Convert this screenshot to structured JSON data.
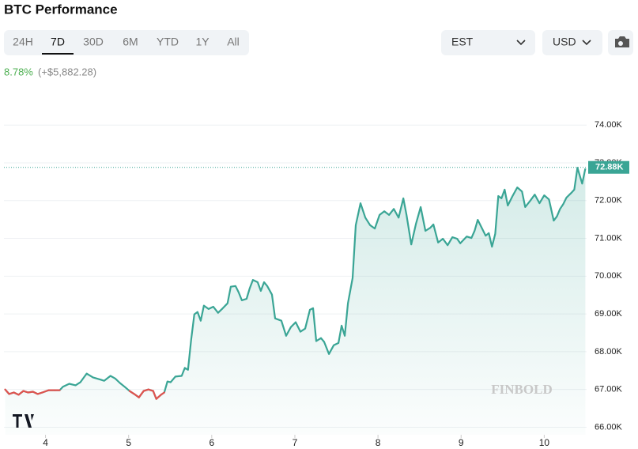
{
  "header": {
    "title": "BTC Performance",
    "tabs": [
      "24H",
      "7D",
      "30D",
      "6M",
      "YTD",
      "1Y",
      "All"
    ],
    "active_tab": "7D",
    "timezone": "EST",
    "currency": "USD",
    "change_percent": "8.78%",
    "change_amount": "(+$5,882.28)",
    "watermark": "FINBOLD"
  },
  "chart_data": {
    "type": "line",
    "color": "#3aa595",
    "down_color": "#e0534f",
    "grid": true,
    "x": [
      3.514,
      3.562,
      3.619,
      3.676,
      3.733,
      3.79,
      3.848,
      3.905,
      3.962,
      4.038,
      4.114,
      4.171,
      4.21,
      4.286,
      4.362,
      4.419,
      4.495,
      4.571,
      4.648,
      4.705,
      4.781,
      4.838,
      4.895,
      4.952,
      5.01,
      5.067,
      5.124,
      5.181,
      5.238,
      5.295,
      5.333,
      5.39,
      5.429,
      5.467,
      5.505,
      5.562,
      5.638,
      5.676,
      5.714,
      5.752,
      5.79,
      5.829,
      5.867,
      5.905,
      5.962,
      6.019,
      6.076,
      6.133,
      6.19,
      6.229,
      6.286,
      6.324,
      6.362,
      6.419,
      6.457,
      6.495,
      6.552,
      6.59,
      6.629,
      6.667,
      6.724,
      6.762,
      6.838,
      6.895,
      6.952,
      7.01,
      7.067,
      7.124,
      7.181,
      7.219,
      7.257,
      7.314,
      7.352,
      7.41,
      7.467,
      7.524,
      7.562,
      7.6,
      7.638,
      7.695,
      7.733,
      7.79,
      7.848,
      7.905,
      7.962,
      8.019,
      8.076,
      8.133,
      8.19,
      8.248,
      8.305,
      8.343,
      8.4,
      8.457,
      8.514,
      8.571,
      8.629,
      8.667,
      8.724,
      8.781,
      8.838,
      8.895,
      8.952,
      8.99,
      9.067,
      9.124,
      9.162,
      9.2,
      9.257,
      9.295,
      9.333,
      9.371,
      9.41,
      9.448,
      9.486,
      9.524,
      9.562,
      9.619,
      9.676,
      9.733,
      9.771,
      9.829,
      9.886,
      9.943,
      10.0,
      10.057,
      10.114,
      10.152,
      10.19,
      10.229,
      10.267,
      10.324,
      10.362,
      10.4,
      10.457,
      10.495
    ],
    "values": [
      67000,
      66880,
      66920,
      66860,
      66960,
      66920,
      66940,
      66880,
      66920,
      66980,
      66980,
      66980,
      67070,
      67150,
      67110,
      67190,
      67420,
      67320,
      67270,
      67230,
      67360,
      67290,
      67170,
      67070,
      66960,
      66880,
      66790,
      66960,
      67000,
      66960,
      66750,
      66860,
      66920,
      67210,
      67190,
      67340,
      67360,
      67570,
      67520,
      68320,
      68990,
      69050,
      68820,
      69220,
      69130,
      69190,
      69030,
      69150,
      69280,
      69720,
      69740,
      69570,
      69360,
      69400,
      69680,
      69900,
      69840,
      69610,
      69840,
      69740,
      69510,
      68880,
      68820,
      68420,
      68650,
      68780,
      68530,
      68610,
      69110,
      69150,
      68280,
      68360,
      68260,
      67940,
      68170,
      68230,
      68690,
      68420,
      69280,
      69950,
      71350,
      71930,
      71550,
      71350,
      71260,
      71620,
      71720,
      71620,
      71780,
      71550,
      72060,
      71620,
      70840,
      71390,
      71830,
      71200,
      71280,
      71370,
      70890,
      70990,
      70820,
      71030,
      70990,
      70870,
      71050,
      71010,
      71200,
      71490,
      71240,
      71070,
      71140,
      70780,
      71120,
      72120,
      72060,
      72290,
      71870,
      72120,
      72350,
      72240,
      71830,
      71990,
      72160,
      71930,
      72140,
      72030,
      71470,
      71580,
      71780,
      71910,
      72080,
      72200,
      72290,
      72870,
      72450,
      72850
    ],
    "xlim": [
      3.5,
      10.51
    ],
    "ylim": [
      65800,
      74800
    ],
    "xticks": [
      4,
      5,
      6,
      7,
      8,
      9,
      10
    ],
    "yticks": [
      {
        "value": 66000,
        "label": "66.00K"
      },
      {
        "value": 67000,
        "label": "67.00K"
      },
      {
        "value": 68000,
        "label": "68.00K"
      },
      {
        "value": 69000,
        "label": "69.00K"
      },
      {
        "value": 70000,
        "label": "70.00K"
      },
      {
        "value": 71000,
        "label": "71.00K"
      },
      {
        "value": 72000,
        "label": "72.00K"
      },
      {
        "value": 73000,
        "label": "73.00K"
      },
      {
        "value": 74000,
        "label": "74.00K"
      }
    ],
    "price_line": {
      "value": 72880,
      "label": "72.88K"
    }
  }
}
